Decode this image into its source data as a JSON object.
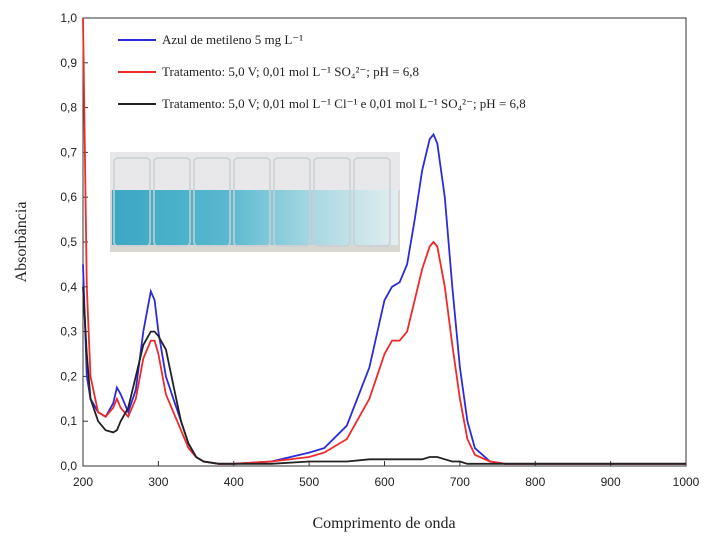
{
  "chart_data": {
    "type": "line",
    "xlabel": "Comprimento de onda",
    "ylabel": "Absorbância",
    "x": [
      200,
      205,
      210,
      220,
      230,
      240,
      245,
      250,
      260,
      270,
      280,
      290,
      295,
      300,
      310,
      320,
      330,
      340,
      350,
      360,
      380,
      400,
      450,
      500,
      520,
      550,
      580,
      600,
      610,
      620,
      630,
      640,
      650,
      660,
      665,
      670,
      680,
      690,
      700,
      710,
      720,
      740,
      760,
      800,
      850,
      900,
      950,
      1000
    ],
    "series": [
      {
        "name": "Azul de metileno 5 mg L⁻¹",
        "color": "#2b2bdd",
        "values": [
          0.45,
          0.2,
          0.15,
          0.12,
          0.11,
          0.14,
          0.175,
          0.16,
          0.12,
          0.17,
          0.3,
          0.39,
          0.37,
          0.3,
          0.2,
          0.15,
          0.1,
          0.05,
          0.02,
          0.01,
          0.005,
          0.005,
          0.01,
          0.03,
          0.04,
          0.09,
          0.22,
          0.37,
          0.4,
          0.41,
          0.45,
          0.55,
          0.66,
          0.73,
          0.74,
          0.72,
          0.6,
          0.4,
          0.22,
          0.1,
          0.04,
          0.01,
          0.005,
          0.005,
          0.005,
          0.005,
          0.005,
          0.005
        ]
      },
      {
        "name": "Tratamento: 5,0 V; 0,01 mol L⁻¹ SO₄²⁻; pH = 6,8",
        "color": "#ee2a2a",
        "values": [
          1.0,
          0.4,
          0.2,
          0.12,
          0.11,
          0.13,
          0.15,
          0.13,
          0.11,
          0.15,
          0.24,
          0.28,
          0.28,
          0.25,
          0.16,
          0.12,
          0.08,
          0.04,
          0.02,
          0.01,
          0.005,
          0.005,
          0.01,
          0.02,
          0.03,
          0.06,
          0.15,
          0.25,
          0.28,
          0.28,
          0.3,
          0.37,
          0.44,
          0.49,
          0.5,
          0.49,
          0.4,
          0.27,
          0.15,
          0.06,
          0.025,
          0.01,
          0.005,
          0.005,
          0.005,
          0.005,
          0.005,
          0.005
        ]
      },
      {
        "name": "Tratamento: 5,0 V; 0,01 mol L⁻¹ Cl⁻¹ e 0,01 mol L⁻¹ SO₄²⁻; pH = 6,8",
        "color": "#222222",
        "values": [
          0.4,
          0.25,
          0.15,
          0.1,
          0.08,
          0.075,
          0.08,
          0.1,
          0.13,
          0.2,
          0.27,
          0.3,
          0.3,
          0.29,
          0.26,
          0.18,
          0.1,
          0.05,
          0.02,
          0.01,
          0.005,
          0.005,
          0.005,
          0.01,
          0.01,
          0.01,
          0.015,
          0.015,
          0.015,
          0.015,
          0.015,
          0.015,
          0.015,
          0.02,
          0.02,
          0.02,
          0.015,
          0.01,
          0.01,
          0.005,
          0.005,
          0.005,
          0.005,
          0.005,
          0.005,
          0.005,
          0.005,
          0.005
        ]
      }
    ],
    "xlim": [
      200,
      1000
    ],
    "xticks": [
      200,
      300,
      400,
      500,
      600,
      700,
      800,
      900,
      1000
    ],
    "ylim": [
      0,
      1
    ],
    "yticks": [
      {
        "value": 0,
        "label": "0,0"
      },
      {
        "value": 0.1,
        "label": "0,1"
      },
      {
        "value": 0.2,
        "label": "0,2"
      },
      {
        "value": 0.3,
        "label": "0,3"
      },
      {
        "value": 0.4,
        "label": "0,4"
      },
      {
        "value": 0.5,
        "label": "0,5"
      },
      {
        "value": 0.6,
        "label": "0,6"
      },
      {
        "value": 0.7,
        "label": "0,7"
      },
      {
        "value": 0.8,
        "label": "0,8"
      },
      {
        "value": 0.9,
        "label": "0,9"
      },
      {
        "value": 1,
        "label": "1,0"
      }
    ]
  }
}
